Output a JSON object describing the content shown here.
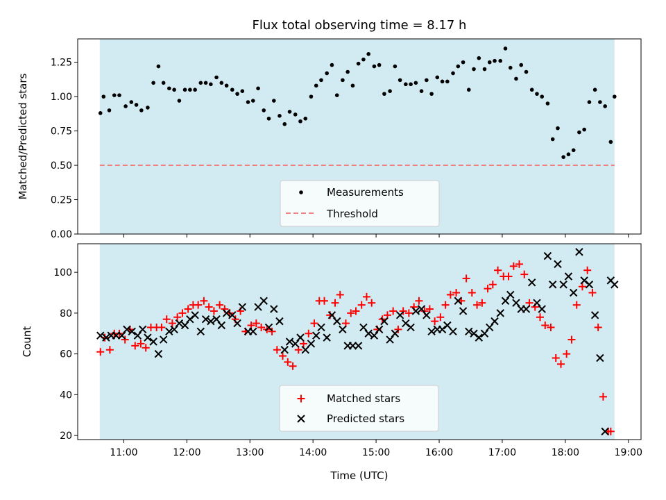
{
  "chart_data": [
    {
      "type": "scatter",
      "title": "Flux total observing time = 8.17 h",
      "xlabel": "",
      "ylabel": "Matched/Predicted stars",
      "ylim": [
        0,
        1.42
      ],
      "yticks": [
        "0.00",
        "0.25",
        "0.50",
        "0.75",
        "1.00",
        "1.25"
      ],
      "xlim_hours": [
        10.27,
        19.2
      ],
      "xtick_values": [
        11,
        12,
        13,
        14,
        15,
        16,
        17,
        18,
        19
      ],
      "shaded_span_hours": [
        10.62,
        18.78
      ],
      "shade_color": "#add8e6",
      "legend_position": "lower center",
      "series": [
        {
          "name": "Measurements",
          "color": "#000000",
          "marker": "dot",
          "x": [
            10.63,
            10.68,
            10.77,
            10.85,
            10.93,
            11.03,
            11.12,
            11.2,
            11.28,
            11.38,
            11.47,
            11.55,
            11.63,
            11.72,
            11.8,
            11.88,
            11.97,
            12.05,
            12.13,
            12.22,
            12.3,
            12.38,
            12.47,
            12.55,
            12.63,
            12.72,
            12.8,
            12.88,
            12.97,
            13.05,
            13.13,
            13.22,
            13.3,
            13.38,
            13.47,
            13.55,
            13.63,
            13.72,
            13.8,
            13.88,
            13.97,
            14.05,
            14.13,
            14.22,
            14.3,
            14.38,
            14.47,
            14.55,
            14.63,
            14.72,
            14.8,
            14.88,
            14.97,
            15.05,
            15.13,
            15.22,
            15.3,
            15.38,
            15.47,
            15.55,
            15.63,
            15.72,
            15.8,
            15.88,
            15.97,
            16.05,
            16.13,
            16.22,
            16.3,
            16.38,
            16.47,
            16.55,
            16.63,
            16.72,
            16.8,
            16.88,
            16.97,
            17.05,
            17.13,
            17.22,
            17.3,
            17.38,
            17.47,
            17.55,
            17.63,
            17.72,
            17.8,
            17.88,
            17.97,
            18.05,
            18.13,
            18.22,
            18.3,
            18.38,
            18.47,
            18.55,
            18.63,
            18.72,
            18.78
          ],
          "y": [
            0.88,
            1.0,
            0.9,
            1.01,
            1.01,
            0.93,
            0.96,
            0.94,
            0.9,
            0.92,
            1.1,
            1.22,
            1.1,
            1.06,
            1.05,
            0.97,
            1.05,
            1.05,
            1.05,
            1.1,
            1.1,
            1.09,
            1.14,
            1.1,
            1.08,
            1.05,
            1.02,
            1.04,
            0.96,
            0.97,
            1.06,
            0.9,
            0.84,
            0.97,
            0.86,
            0.8,
            0.89,
            0.87,
            0.82,
            0.84,
            1.0,
            1.08,
            1.12,
            1.17,
            1.23,
            1.01,
            1.12,
            1.18,
            1.08,
            1.24,
            1.27,
            1.31,
            1.22,
            1.23,
            1.02,
            1.04,
            1.22,
            1.12,
            1.09,
            1.09,
            1.1,
            1.04,
            1.12,
            1.02,
            1.14,
            1.11,
            1.11,
            1.17,
            1.22,
            1.25,
            1.05,
            1.2,
            1.28,
            1.2,
            1.25,
            1.26,
            1.26,
            1.35,
            1.21,
            1.13,
            1.23,
            1.18,
            1.05,
            1.02,
            1.0,
            0.95,
            0.69,
            0.77,
            0.56,
            0.58,
            0.61,
            0.74,
            0.76,
            0.96,
            1.05,
            0.96,
            0.93,
            0.67,
            1.0
          ]
        },
        {
          "name": "Threshold",
          "color": "#f08080",
          "style": "dashed",
          "value": 0.5
        }
      ]
    },
    {
      "type": "scatter",
      "title": "",
      "xlabel": "Time (UTC)",
      "ylabel": "Count",
      "ylim": [
        18,
        114
      ],
      "yticks": [
        "20",
        "40",
        "60",
        "80",
        "100"
      ],
      "xlim_hours": [
        10.27,
        19.2
      ],
      "xticks": [
        "11:00",
        "12:00",
        "13:00",
        "14:00",
        "15:00",
        "16:00",
        "17:00",
        "18:00",
        "19:00"
      ],
      "xtick_values": [
        11,
        12,
        13,
        14,
        15,
        16,
        17,
        18,
        19
      ],
      "shaded_span_hours": [
        10.62,
        18.78
      ],
      "shade_color": "#add8e6",
      "legend_position": "lower center",
      "series": [
        {
          "name": "Matched stars",
          "color": "#ff0000",
          "marker": "plus",
          "x": [
            10.63,
            10.7,
            10.78,
            10.85,
            10.93,
            11.02,
            11.1,
            11.18,
            11.27,
            11.35,
            11.43,
            11.52,
            11.6,
            11.68,
            11.77,
            11.85,
            11.93,
            12.02,
            12.1,
            12.18,
            12.27,
            12.35,
            12.43,
            12.52,
            12.6,
            12.68,
            12.77,
            12.85,
            12.93,
            13.02,
            13.1,
            13.18,
            13.27,
            13.35,
            13.43,
            13.52,
            13.6,
            13.68,
            13.77,
            13.85,
            13.93,
            14.02,
            14.1,
            14.18,
            14.27,
            14.35,
            14.43,
            14.52,
            14.6,
            14.68,
            14.77,
            14.85,
            14.93,
            15.02,
            15.1,
            15.18,
            15.27,
            15.35,
            15.43,
            15.52,
            15.6,
            15.68,
            15.77,
            15.85,
            15.93,
            16.02,
            16.1,
            16.18,
            16.27,
            16.35,
            16.43,
            16.52,
            16.6,
            16.68,
            16.77,
            16.85,
            16.93,
            17.02,
            17.1,
            17.18,
            17.27,
            17.35,
            17.43,
            17.52,
            17.6,
            17.68,
            17.77,
            17.85,
            17.93,
            18.02,
            18.1,
            18.18,
            18.27,
            18.35,
            18.43,
            18.52,
            18.6,
            18.68,
            18.72
          ],
          "y": [
            61,
            68,
            62,
            70,
            70,
            67,
            72,
            64,
            65,
            63,
            73,
            73,
            73,
            77,
            75,
            78,
            80,
            82,
            84,
            84,
            86,
            83,
            81,
            84,
            82,
            80,
            77,
            81,
            71,
            74,
            75,
            73,
            72,
            71,
            62,
            59,
            56,
            54,
            62,
            65,
            70,
            75,
            86,
            86,
            79,
            85,
            89,
            75,
            80,
            81,
            84,
            88,
            85,
            72,
            77,
            79,
            81,
            72,
            81,
            80,
            83,
            86,
            81,
            82,
            76,
            78,
            84,
            89,
            90,
            86,
            97,
            90,
            84,
            85,
            92,
            94,
            101,
            98,
            98,
            103,
            104,
            99,
            85,
            83,
            78,
            74,
            73,
            58,
            55,
            60,
            67,
            84,
            93,
            101,
            90,
            73,
            39,
            22,
            22
          ]
        },
        {
          "name": "Predicted stars",
          "color": "#000000",
          "marker": "x",
          "x": [
            10.63,
            10.72,
            10.8,
            10.88,
            10.97,
            11.05,
            11.13,
            11.22,
            11.3,
            11.38,
            11.47,
            11.55,
            11.63,
            11.72,
            11.8,
            11.88,
            11.97,
            12.05,
            12.13,
            12.22,
            12.3,
            12.38,
            12.47,
            12.55,
            12.63,
            12.72,
            12.8,
            12.88,
            12.97,
            13.05,
            13.13,
            13.22,
            13.3,
            13.38,
            13.47,
            13.55,
            13.63,
            13.72,
            13.8,
            13.88,
            13.97,
            14.05,
            14.13,
            14.22,
            14.3,
            14.38,
            14.47,
            14.55,
            14.63,
            14.72,
            14.8,
            14.88,
            14.97,
            15.05,
            15.13,
            15.22,
            15.3,
            15.38,
            15.47,
            15.55,
            15.63,
            15.72,
            15.8,
            15.88,
            15.97,
            16.05,
            16.13,
            16.22,
            16.3,
            16.38,
            16.47,
            16.55,
            16.63,
            16.72,
            16.8,
            16.88,
            16.97,
            17.05,
            17.13,
            17.22,
            17.3,
            17.38,
            17.47,
            17.55,
            17.63,
            17.72,
            17.8,
            17.88,
            17.97,
            18.05,
            18.13,
            18.22,
            18.3,
            18.38,
            18.47,
            18.55,
            18.63,
            18.72,
            18.78
          ],
          "y": [
            69,
            68,
            69,
            69,
            69,
            72,
            71,
            69,
            72,
            68,
            66,
            60,
            67,
            71,
            72,
            75,
            74,
            77,
            79,
            71,
            77,
            76,
            77,
            74,
            80,
            79,
            75,
            83,
            71,
            71,
            83,
            86,
            73,
            82,
            76,
            62,
            66,
            65,
            68,
            62,
            65,
            69,
            73,
            68,
            79,
            76,
            72,
            64,
            64,
            64,
            73,
            70,
            69,
            72,
            76,
            67,
            70,
            79,
            75,
            73,
            81,
            82,
            79,
            71,
            72,
            72,
            74,
            71,
            86,
            81,
            71,
            70,
            68,
            70,
            73,
            76,
            80,
            86,
            89,
            85,
            82,
            82,
            95,
            85,
            82,
            108,
            94,
            104,
            94,
            98,
            90,
            110,
            96,
            94,
            79,
            58,
            22,
            96,
            94
          ]
        }
      ]
    }
  ]
}
